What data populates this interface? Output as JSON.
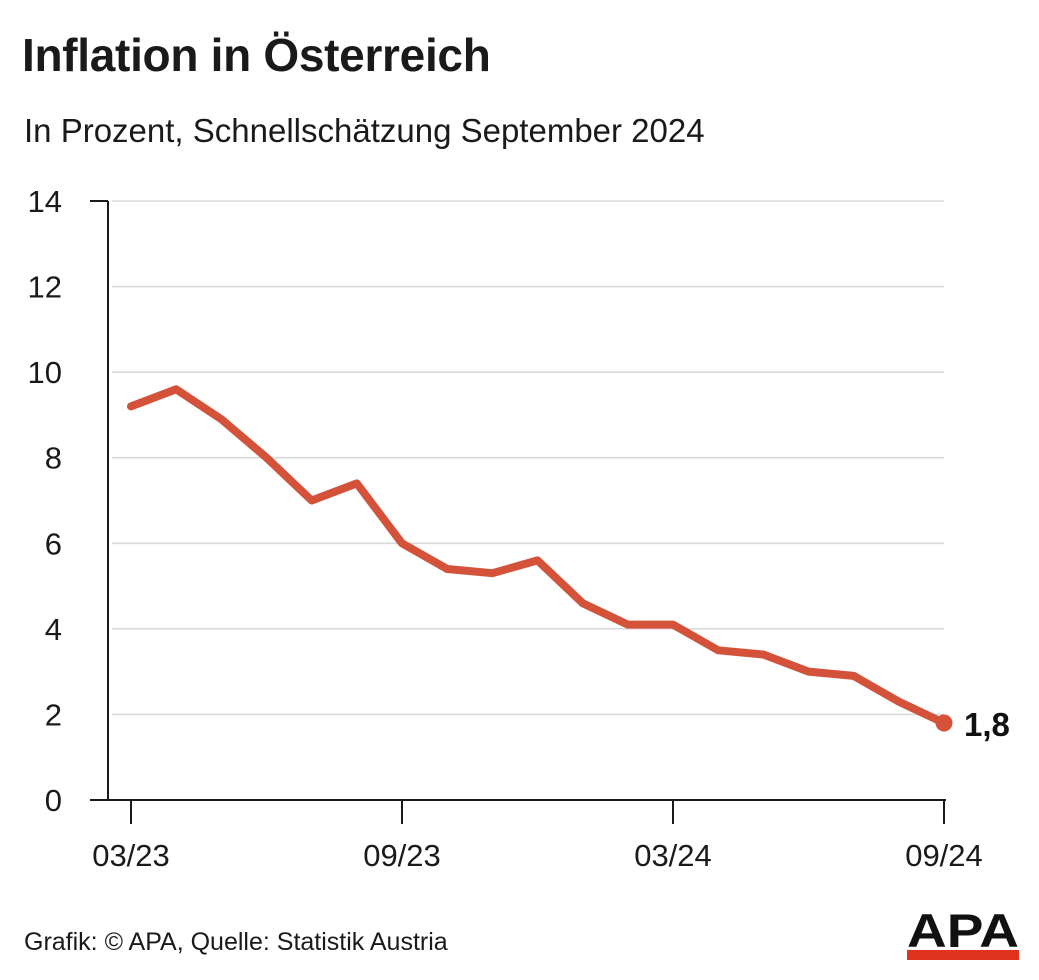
{
  "header": {
    "title": "Inflation in Österreich",
    "subtitle": "In Prozent, Schnellschätzung September 2024"
  },
  "footer": {
    "credit": "Grafik: © APA, Quelle: Statistik Austria"
  },
  "logo": {
    "text": "APA",
    "colors": {
      "text": "#111111",
      "accent": "#e1321e"
    }
  },
  "colors": {
    "line": "#d4513a",
    "grid": "#d9d9d9",
    "axis": "#1a1a1a"
  },
  "chart_data": {
    "type": "line",
    "title": "Inflation in Österreich",
    "subtitle": "In Prozent, Schnellschätzung September 2024",
    "xlabel": "",
    "ylabel": "",
    "x": [
      "03/23",
      "04/23",
      "05/23",
      "06/23",
      "07/23",
      "08/23",
      "09/23",
      "10/23",
      "11/23",
      "12/23",
      "01/24",
      "02/24",
      "03/24",
      "04/24",
      "05/24",
      "06/24",
      "07/24",
      "08/24",
      "09/24"
    ],
    "x_tick_labels": [
      "03/23",
      "09/23",
      "03/24",
      "09/24"
    ],
    "series": [
      {
        "values": [
          9.2,
          9.6,
          8.9,
          8.0,
          7.0,
          7.4,
          6.0,
          5.4,
          5.3,
          5.6,
          4.6,
          4.1,
          4.1,
          3.5,
          3.4,
          3.0,
          2.9,
          2.3,
          1.8
        ]
      }
    ],
    "ylim": [
      0,
      14
    ],
    "y_ticks": [
      "0",
      "2",
      "4",
      "6",
      "8",
      "10",
      "12",
      "14"
    ],
    "end_label": "1,8",
    "grid": true,
    "legend": "none"
  }
}
